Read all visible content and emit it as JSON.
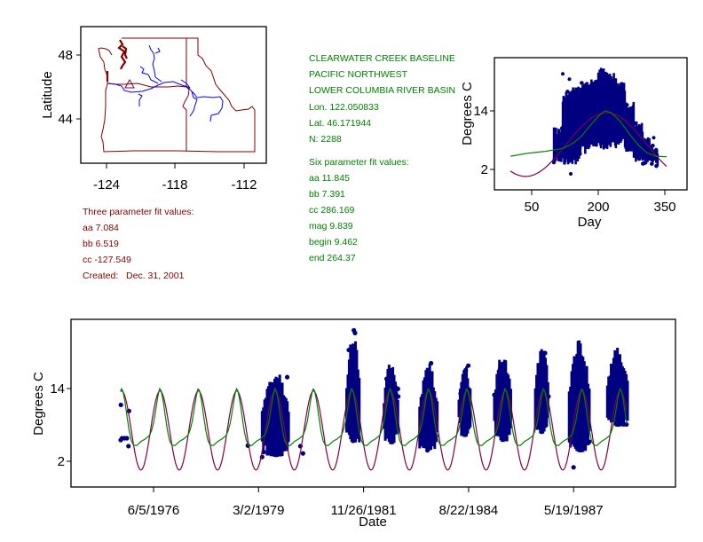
{
  "map": {
    "ylabel": "Latitude",
    "yticks": [
      "48",
      "44"
    ],
    "xticks": [
      "-124",
      "-118",
      "-112"
    ],
    "site_marker": "triangle-icon"
  },
  "three_param": {
    "title": "Three parameter fit values:",
    "lines": [
      "aa 7.084",
      "bb 6.519",
      "cc -127.549"
    ],
    "created": "Created:   Dec. 31, 2001",
    "aa": 7.084,
    "bb": 6.519,
    "cc": -127.549
  },
  "site": {
    "lines": [
      "CLEARWATER CREEK BASELINE",
      "PACIFIC NORTHWEST",
      "LOWER COLUMBIA RIVER BASIN",
      "Lon. 122.050833",
      "Lat. 46.171944",
      "N: 2288"
    ]
  },
  "six_param": {
    "title": "Six parameter fit values:",
    "lines": [
      "aa 11.845",
      "bb 7.391",
      "cc 286.169",
      "mag 9.839",
      "begin 9.462",
      "end 264.37"
    ]
  },
  "colors": {
    "points": "#000080",
    "three_param_fit": "#800040",
    "six_param_fit": "#008000",
    "map_boundaries": "#800000",
    "rivers": "#0000ff",
    "three_param_text": "#800000",
    "site_text": "#008000"
  },
  "chart_data": [
    {
      "type": "scatter",
      "xlabel": "Day",
      "ylabel": "Degrees C",
      "xticks": [
        "50",
        "200",
        "350"
      ],
      "yticks": [
        "2",
        "14"
      ],
      "xlim": [
        -34,
        400
      ],
      "ylim": [
        -2.2,
        24.9
      ],
      "grid": false,
      "point_ranges_by_day": [
        [
          100,
          120,
          3.5,
          11
        ],
        [
          120,
          140,
          3,
          18
        ],
        [
          140,
          160,
          3,
          19
        ],
        [
          160,
          180,
          5,
          20
        ],
        [
          180,
          200,
          6.5,
          21
        ],
        [
          200,
          220,
          5.8,
          23
        ],
        [
          220,
          240,
          6,
          22
        ],
        [
          240,
          260,
          7,
          20
        ],
        [
          260,
          280,
          5,
          16
        ],
        [
          280,
          300,
          3.5,
          12
        ],
        [
          300,
          320,
          3,
          9
        ],
        [
          320,
          335,
          2.7,
          7
        ]
      ],
      "outliers": [
        [
          100,
          3.4
        ],
        [
          120,
          21.6
        ],
        [
          135,
          20.5
        ],
        [
          138,
          1.1
        ],
        [
          325,
          8.5
        ]
      ],
      "six_parameter_fit_curve": [
        [
          2,
          4.7
        ],
        [
          40,
          5.3
        ],
        [
          80,
          5.7
        ],
        [
          120,
          6.3
        ],
        [
          140,
          7.2
        ],
        [
          160,
          8.6
        ],
        [
          180,
          10.8
        ],
        [
          200,
          12.9
        ],
        [
          215,
          14
        ],
        [
          230,
          13.6
        ],
        [
          250,
          11.8
        ],
        [
          270,
          9.3
        ],
        [
          290,
          7
        ],
        [
          310,
          5.4
        ],
        [
          330,
          4.7
        ],
        [
          355,
          4.6
        ]
      ],
      "three_parameter_fit_days": [
        2,
        355
      ]
    },
    {
      "type": "scatter",
      "xlabel": "Date",
      "ylabel": "Degrees C",
      "xticks": [
        "6/5/1976",
        "3/2/1979",
        "11/26/1981",
        "8/22/1984",
        "5/19/1987"
      ],
      "xtick_dates": [
        "1976-06-05",
        "1979-03-02",
        "1981-11-26",
        "1984-08-22",
        "1987-05-19"
      ],
      "yticks": [
        "2",
        "14"
      ],
      "xlim": [
        "1974-04-06",
        "1990-01-10"
      ],
      "ylim": [
        -2.2,
        25.4
      ],
      "grid": false,
      "point_clusters": [
        [
          "1979-04-05",
          "1979-12-20",
          2.7,
          17
        ],
        [
          "1981-06-18",
          "1981-10-23",
          5,
          23.7
        ],
        [
          "1982-06-09",
          "1982-10-23",
          4.8,
          19
        ],
        [
          "1983-05-14",
          "1983-10-30",
          3.8,
          18.4
        ],
        [
          "1984-05-22",
          "1984-09-17",
          6,
          18
        ],
        [
          "1985-04-25",
          "1985-10-03",
          5.2,
          20.3
        ],
        [
          "1986-05-20",
          "1986-09-24",
          6.5,
          21.8
        ],
        [
          "1987-04-07",
          "1987-10-19",
          3.5,
          22.8
        ],
        [
          "1988-04-05",
          "1988-10-17",
          7.7,
          21
        ]
      ],
      "points": [
        [
          "1975-07-28",
          5.5
        ],
        [
          "1975-08-10",
          5.8
        ],
        [
          "1975-09-01",
          5.8
        ],
        [
          "1975-09-25",
          5.8
        ],
        [
          "1975-07-30",
          11.3
        ],
        [
          "1975-10-15",
          10.3
        ],
        [
          "1975-10-10",
          4.5
        ],
        [
          "1978-11-20",
          4.6
        ],
        [
          "1980-04-03",
          4.5
        ],
        [
          "1980-04-28",
          3.3
        ],
        [
          "1987-05-19",
          1.0
        ]
      ],
      "fit_range": [
        "1975-07-27",
        "1988-10-08"
      ]
    }
  ]
}
